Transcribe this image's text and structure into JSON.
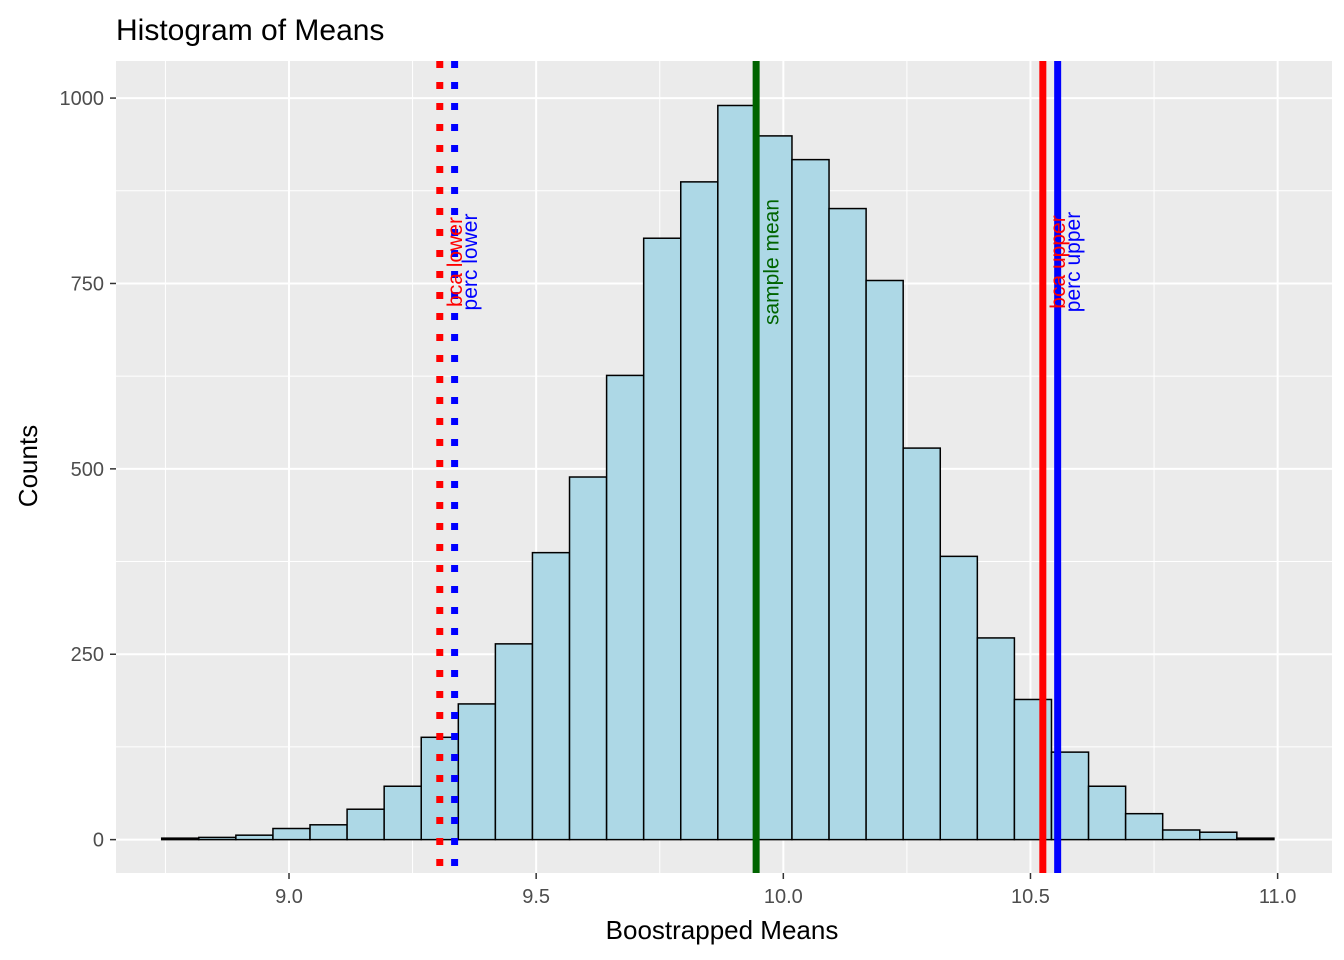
{
  "chart_data": {
    "type": "bar",
    "title": "Histogram of Means",
    "xlabel": "Boostrapped Means",
    "ylabel": "Counts",
    "xlim": [
      8.65,
      11.11
    ],
    "ylim": [
      -45,
      1050
    ],
    "xticks": [
      9.0,
      9.5,
      10.0,
      10.5,
      11.0
    ],
    "xtick_labels": [
      "9.0",
      "9.5",
      "10.0",
      "10.5",
      "11.0"
    ],
    "yticks": [
      0,
      250,
      500,
      750,
      1000
    ],
    "ytick_labels": [
      "0",
      "250",
      "500",
      "750",
      "1000"
    ],
    "grid": true,
    "bin_width": 0.075,
    "bins": [
      {
        "center": 8.78,
        "count": 2
      },
      {
        "center": 8.855,
        "count": 3
      },
      {
        "center": 8.93,
        "count": 6
      },
      {
        "center": 9.005,
        "count": 15
      },
      {
        "center": 9.08,
        "count": 20
      },
      {
        "center": 9.155,
        "count": 41
      },
      {
        "center": 9.23,
        "count": 72
      },
      {
        "center": 9.305,
        "count": 138
      },
      {
        "center": 9.38,
        "count": 183
      },
      {
        "center": 9.455,
        "count": 264
      },
      {
        "center": 9.53,
        "count": 387
      },
      {
        "center": 9.605,
        "count": 489
      },
      {
        "center": 9.68,
        "count": 626
      },
      {
        "center": 9.755,
        "count": 811
      },
      {
        "center": 9.83,
        "count": 887
      },
      {
        "center": 9.905,
        "count": 990
      },
      {
        "center": 9.98,
        "count": 949
      },
      {
        "center": 10.055,
        "count": 917
      },
      {
        "center": 10.13,
        "count": 851
      },
      {
        "center": 10.205,
        "count": 754
      },
      {
        "center": 10.28,
        "count": 528
      },
      {
        "center": 10.355,
        "count": 382
      },
      {
        "center": 10.43,
        "count": 272
      },
      {
        "center": 10.505,
        "count": 189
      },
      {
        "center": 10.58,
        "count": 118
      },
      {
        "center": 10.655,
        "count": 72
      },
      {
        "center": 10.73,
        "count": 35
      },
      {
        "center": 10.805,
        "count": 13
      },
      {
        "center": 10.88,
        "count": 10
      },
      {
        "center": 10.955,
        "count": 2
      }
    ],
    "bar_fill": "#add8e6",
    "bar_outline": "#000000",
    "panel_background": "#ebebeb",
    "vlines": [
      {
        "label": "bca lower",
        "x": 9.305,
        "color": "#ff0000",
        "style": "dotted"
      },
      {
        "label": "perc lower",
        "x": 9.335,
        "color": "#0000ff",
        "style": "dotted"
      },
      {
        "label": "sample mean",
        "x": 9.945,
        "color": "#006400",
        "style": "solid"
      },
      {
        "label": "bca upper",
        "x": 10.525,
        "color": "#ff0000",
        "style": "solid"
      },
      {
        "label": "perc upper",
        "x": 10.555,
        "color": "#0000ff",
        "style": "solid"
      }
    ]
  }
}
